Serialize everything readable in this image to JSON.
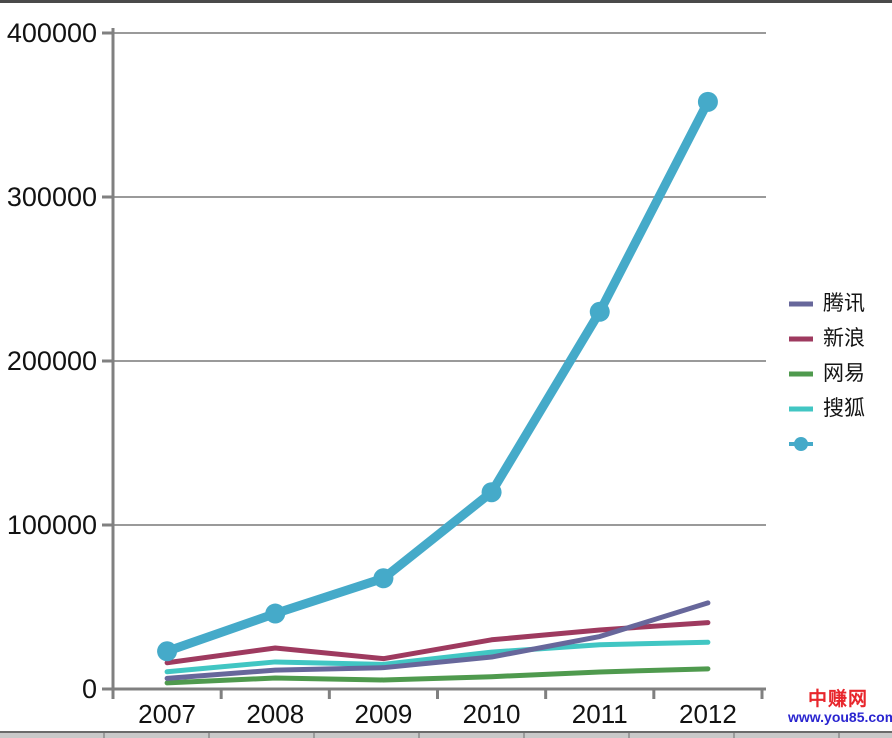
{
  "watermark": {
    "brand": "中赚网",
    "url": "www.you85.com",
    "brand_color": "#e8262c",
    "url_color": "#2a25d0"
  },
  "chart_data": {
    "type": "line",
    "title": "",
    "xlabel": "",
    "ylabel": "",
    "categories": [
      "2007",
      "2008",
      "2009",
      "2010",
      "2011",
      "2012"
    ],
    "y_ticks": [
      0,
      100000,
      200000,
      300000,
      400000
    ],
    "ylim": [
      0,
      400000
    ],
    "grid": true,
    "legend_position": "right",
    "axis_color": "#808080",
    "grid_color": "#9a9a9a",
    "series": [
      {
        "name": "腾讯",
        "color": "#67679b",
        "values": [
          6500,
          11500,
          13000,
          19500,
          32000,
          52500
        ],
        "marker": false,
        "line_width": 5,
        "z": 4
      },
      {
        "name": "新浪",
        "color": "#9e3a5f",
        "values": [
          16000,
          25000,
          18500,
          30000,
          36000,
          40500
        ],
        "marker": false,
        "line_width": 5,
        "z": 3
      },
      {
        "name": "网易",
        "color": "#4f9a4e",
        "values": [
          3700,
          6700,
          5500,
          7500,
          10400,
          12300
        ],
        "marker": false,
        "line_width": 5,
        "z": 1
      },
      {
        "name": "搜狐",
        "color": "#41c6c3",
        "values": [
          10500,
          16500,
          15000,
          22500,
          27000,
          28500
        ],
        "marker": false,
        "line_width": 5,
        "z": 2
      },
      {
        "name": "",
        "color": "#45aac9",
        "values": [
          23000,
          46000,
          67500,
          120000,
          230000,
          358000
        ],
        "marker": true,
        "line_width": 9,
        "z": 5
      }
    ]
  }
}
